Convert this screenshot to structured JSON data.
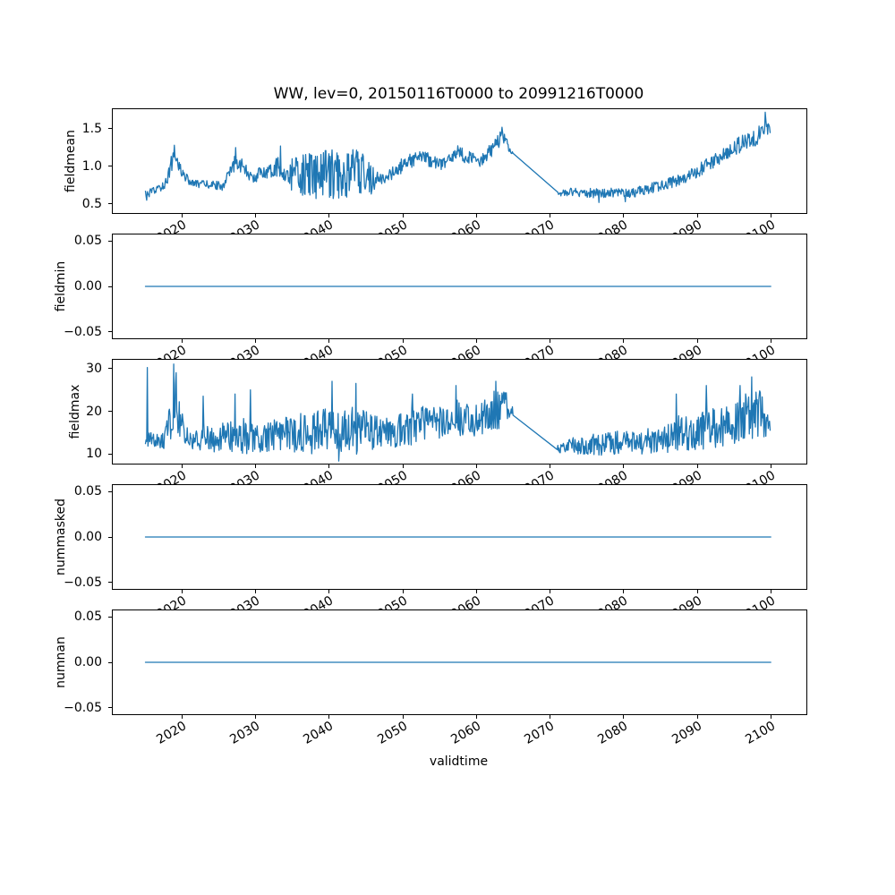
{
  "figure": {
    "title": "WW, lev=0, 20150116T0000 to 20991216T0000",
    "xlabel": "validtime",
    "background_color": "#ffffff",
    "line_color": "#1f77b4",
    "axis_color": "#000000",
    "xlim": [
      2010.6,
      2104.8
    ],
    "xticks": [
      2020,
      2030,
      2040,
      2050,
      2060,
      2070,
      2080,
      2090,
      2100
    ],
    "xtick_labels": [
      "2020",
      "2030",
      "2040",
      "2050",
      "2060",
      "2070",
      "2080",
      "2090",
      "2100"
    ],
    "xtick_rotation_deg": 30,
    "data_start": 2015.042,
    "data_end": 2099.958
  },
  "chart_data": [
    {
      "type": "line",
      "name": "fieldmean",
      "ylabel": "fieldmean",
      "ylim": [
        0.38,
        1.76
      ],
      "yticks": [
        0.5,
        1.0,
        1.5
      ],
      "ytick_labels": [
        "0.5",
        "1.0",
        "1.5"
      ],
      "kind": "noisy",
      "seed": 12345,
      "gap": [
        2065.0,
        2070.95
      ],
      "anchors": [
        [
          2015.0,
          0.62,
          0.05
        ],
        [
          2016.5,
          0.68,
          0.06
        ],
        [
          2017.8,
          0.78,
          0.07
        ],
        [
          2018.6,
          1.05,
          0.12
        ],
        [
          2019.1,
          1.15,
          0.1
        ],
        [
          2019.6,
          1.0,
          0.08
        ],
        [
          2020.5,
          0.85,
          0.06
        ],
        [
          2021.5,
          0.77,
          0.05
        ],
        [
          2023.5,
          0.76,
          0.05
        ],
        [
          2025.5,
          0.74,
          0.06
        ],
        [
          2026.8,
          0.95,
          0.1
        ],
        [
          2027.4,
          1.1,
          0.12
        ],
        [
          2028.2,
          1.0,
          0.1
        ],
        [
          2029.5,
          0.83,
          0.07
        ],
        [
          2031.0,
          0.93,
          0.1
        ],
        [
          2033.0,
          1.0,
          0.13
        ],
        [
          2034.2,
          0.88,
          0.09
        ],
        [
          2035.0,
          0.9,
          0.3
        ],
        [
          2038.0,
          0.87,
          0.32
        ],
        [
          2041.0,
          0.9,
          0.33
        ],
        [
          2044.0,
          0.92,
          0.34
        ],
        [
          2045.9,
          0.9,
          0.3
        ],
        [
          2046.3,
          0.82,
          0.1
        ],
        [
          2048.0,
          0.86,
          0.08
        ],
        [
          2050.0,
          1.02,
          0.1
        ],
        [
          2052.0,
          1.12,
          0.1
        ],
        [
          2054.0,
          1.08,
          0.09
        ],
        [
          2055.5,
          1.02,
          0.08
        ],
        [
          2057.5,
          1.18,
          0.1
        ],
        [
          2059.0,
          1.12,
          0.1
        ],
        [
          2060.5,
          1.06,
          0.08
        ],
        [
          2062.0,
          1.22,
          0.1
        ],
        [
          2063.5,
          1.4,
          0.1
        ],
        [
          2064.3,
          1.28,
          0.08
        ],
        [
          2064.9,
          1.17,
          0.02
        ],
        [
          2071.0,
          0.63,
          0.03
        ],
        [
          2072.5,
          0.66,
          0.05
        ],
        [
          2075.0,
          0.65,
          0.06
        ],
        [
          2077.0,
          0.63,
          0.07
        ],
        [
          2079.0,
          0.66,
          0.06
        ],
        [
          2081.0,
          0.64,
          0.06
        ],
        [
          2083.0,
          0.7,
          0.07
        ],
        [
          2085.0,
          0.74,
          0.07
        ],
        [
          2087.0,
          0.8,
          0.08
        ],
        [
          2089.0,
          0.88,
          0.09
        ],
        [
          2091.0,
          1.0,
          0.1
        ],
        [
          2093.0,
          1.1,
          0.1
        ],
        [
          2095.0,
          1.25,
          0.11
        ],
        [
          2096.5,
          1.33,
          0.11
        ],
        [
          2098.0,
          1.38,
          0.12
        ],
        [
          2099.2,
          1.55,
          0.1
        ],
        [
          2099.96,
          1.45,
          0.06
        ]
      ],
      "spikes": [
        [
          2015.2,
          0.55
        ],
        [
          2019.0,
          1.28
        ],
        [
          2027.3,
          1.25
        ],
        [
          2033.4,
          1.27
        ],
        [
          2063.5,
          1.52
        ],
        [
          2076.6,
          0.52
        ],
        [
          2080.2,
          0.53
        ],
        [
          2099.25,
          1.72
        ]
      ]
    },
    {
      "type": "line",
      "name": "fieldmin",
      "ylabel": "fieldmin",
      "ylim": [
        -0.057,
        0.057
      ],
      "yticks": [
        0.05,
        0.0,
        -0.05
      ],
      "ytick_labels": [
        "0.05",
        "0.00",
        "−0.05"
      ],
      "kind": "flat",
      "value": 0
    },
    {
      "type": "line",
      "name": "fieldmax",
      "ylabel": "fieldmax",
      "ylim": [
        7.8,
        32.0
      ],
      "yticks": [
        10,
        20,
        30
      ],
      "ytick_labels": [
        "10",
        "20",
        "30"
      ],
      "kind": "noisy",
      "seed": 98765,
      "gap": [
        2065.0,
        2070.95
      ],
      "anchors": [
        [
          2015.0,
          13,
          2.5
        ],
        [
          2016.0,
          13,
          2
        ],
        [
          2017.5,
          13,
          2
        ],
        [
          2018.5,
          18,
          5
        ],
        [
          2019.0,
          24,
          6
        ],
        [
          2019.5,
          18,
          5
        ],
        [
          2020.5,
          14,
          3
        ],
        [
          2022.0,
          13,
          2.5
        ],
        [
          2023.0,
          14.5,
          4
        ],
        [
          2024.5,
          13,
          2.5
        ],
        [
          2026.0,
          14.5,
          3.5
        ],
        [
          2027.5,
          14,
          4
        ],
        [
          2029.0,
          15,
          5
        ],
        [
          2030.5,
          13.5,
          3
        ],
        [
          2032.0,
          14.5,
          4
        ],
        [
          2034.0,
          15,
          4.5
        ],
        [
          2036.0,
          15,
          4.5
        ],
        [
          2038.0,
          15,
          5
        ],
        [
          2040.0,
          16,
          6
        ],
        [
          2042.0,
          15,
          5
        ],
        [
          2044.0,
          16,
          6
        ],
        [
          2045.5,
          15.5,
          5
        ],
        [
          2047.0,
          14.5,
          3.5
        ],
        [
          2049.0,
          15.5,
          4
        ],
        [
          2051.0,
          16.5,
          4.5
        ],
        [
          2053.0,
          17.5,
          4
        ],
        [
          2055.0,
          17,
          4
        ],
        [
          2057.0,
          18.5,
          4.5
        ],
        [
          2059.0,
          18,
          4
        ],
        [
          2061.0,
          18.5,
          4
        ],
        [
          2062.5,
          20,
          5
        ],
        [
          2064.0,
          20.5,
          4
        ],
        [
          2064.9,
          20,
          1
        ],
        [
          2071.0,
          11.2,
          1
        ],
        [
          2072.5,
          12,
          2
        ],
        [
          2075.0,
          12.5,
          2.5
        ],
        [
          2077.0,
          12,
          2.5
        ],
        [
          2079.0,
          13,
          3
        ],
        [
          2081.0,
          12.5,
          2.5
        ],
        [
          2083.0,
          13,
          3
        ],
        [
          2085.0,
          14,
          3.5
        ],
        [
          2087.0,
          14.5,
          4.5
        ],
        [
          2089.0,
          15,
          4
        ],
        [
          2091.0,
          16,
          5
        ],
        [
          2093.0,
          16,
          4.5
        ],
        [
          2095.0,
          17.5,
          5
        ],
        [
          2097.0,
          19,
          5.5
        ],
        [
          2098.5,
          19.5,
          5.5
        ],
        [
          2099.96,
          16.5,
          2.5
        ]
      ],
      "spikes": [
        [
          2015.3,
          30.2
        ],
        [
          2018.9,
          31.0
        ],
        [
          2019.2,
          29.0
        ],
        [
          2022.9,
          23.5
        ],
        [
          2027.2,
          24.0
        ],
        [
          2029.3,
          25.0
        ],
        [
          2040.4,
          27.0
        ],
        [
          2041.3,
          8.4
        ],
        [
          2043.6,
          26.5
        ],
        [
          2051.3,
          24.0
        ],
        [
          2057.2,
          26.0
        ],
        [
          2062.6,
          27.0
        ],
        [
          2087.1,
          24.0
        ],
        [
          2091.2,
          26.0
        ],
        [
          2095.8,
          26.0
        ],
        [
          2097.35,
          28.0
        ]
      ]
    },
    {
      "type": "line",
      "name": "nummasked",
      "ylabel": "nummasked",
      "ylim": [
        -0.057,
        0.057
      ],
      "yticks": [
        0.05,
        0.0,
        -0.05
      ],
      "ytick_labels": [
        "0.05",
        "0.00",
        "−0.05"
      ],
      "kind": "flat",
      "value": 0
    },
    {
      "type": "line",
      "name": "numnan",
      "ylabel": "numnan",
      "ylim": [
        -0.057,
        0.057
      ],
      "yticks": [
        0.05,
        0.0,
        -0.05
      ],
      "ytick_labels": [
        "0.05",
        "0.00",
        "−0.05"
      ],
      "kind": "flat",
      "value": 0
    }
  ]
}
